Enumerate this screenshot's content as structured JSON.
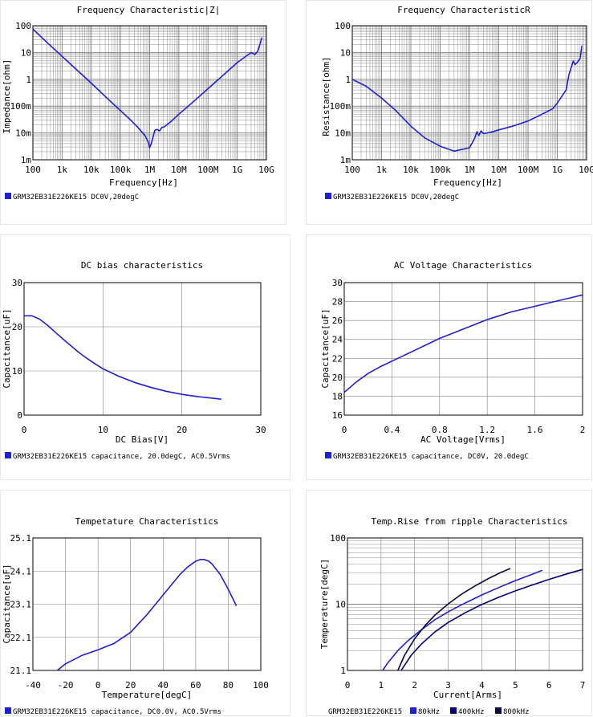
{
  "colors": {
    "blue": "#1f1fd4",
    "darkblue": "#00007a",
    "navy": "#0a0a40",
    "grid": "#808080"
  },
  "chart_data": [
    {
      "type": "line",
      "title": "Frequency  Characteristic|Z|",
      "xlabel": "Frequency[Hz]",
      "ylabel": "Impedance[ohm]",
      "xscale": "log",
      "yscale": "log",
      "xlim": [
        100,
        10000000000
      ],
      "ylim": [
        0.001,
        100
      ],
      "xtick_labels": [
        "100",
        "1k",
        "10k",
        "100k",
        "1M",
        "10M",
        "100M",
        "1G",
        "10G"
      ],
      "ytick_labels": [
        "1m",
        "10m",
        "100m",
        "1",
        "10",
        "100"
      ],
      "legend": [
        "GRM32EB31E226KE15 DC0V,20degC"
      ],
      "series": [
        {
          "name": "GRM32EB31E226KE15 DC0V,20degC",
          "color": "blue",
          "x": [
            100,
            300,
            1000,
            3000,
            10000,
            30000,
            100000,
            200000,
            400000,
            700000,
            900000,
            1000000,
            1150000,
            1500000,
            1800000,
            2200000,
            2600000,
            3200000,
            5000000,
            10000000,
            30000000,
            100000000,
            300000000,
            1000000000,
            3000000000,
            4000000000,
            5000000000,
            6000000000,
            7000000000
          ],
          "y": [
            75,
            24,
            7.2,
            2.4,
            0.72,
            0.23,
            0.068,
            0.034,
            0.016,
            0.0078,
            0.0045,
            0.0028,
            0.0042,
            0.0125,
            0.0135,
            0.012,
            0.016,
            0.017,
            0.025,
            0.05,
            0.14,
            0.45,
            1.3,
            4.2,
            10,
            8.5,
            11,
            20,
            36
          ]
        }
      ]
    },
    {
      "type": "line",
      "title": "Frequency  CharacteristicR",
      "xlabel": "Frequency[Hz]",
      "ylabel": "Resistance[ohm]",
      "xscale": "log",
      "yscale": "log",
      "xlim": [
        100,
        10000000000
      ],
      "ylim": [
        0.001,
        100
      ],
      "xtick_labels": [
        "100",
        "1k",
        "10k",
        "100k",
        "1M",
        "10M",
        "100M",
        "1G",
        "10G"
      ],
      "ytick_labels": [
        "1m",
        "10m",
        "100m",
        "1",
        "10",
        "100"
      ],
      "legend": [
        "GRM32EB31E226KE15 DC0V,20degC"
      ],
      "series": [
        {
          "name": "GRM32EB31E226KE15 DC0V,20degC",
          "color": "blue",
          "x": [
            100,
            300,
            1000,
            3000,
            10000,
            30000,
            100000,
            300000,
            1000000,
            1500000,
            1800000,
            2100000,
            2500000,
            3000000,
            4000000,
            6000000,
            10000000,
            30000000,
            100000000,
            300000000,
            700000000,
            1000000000,
            2000000000,
            2500000000,
            3000000000,
            3500000000,
            4000000000,
            5000000000,
            6000000000,
            7000000000
          ],
          "y": [
            1,
            0.55,
            0.2,
            0.07,
            0.018,
            0.0065,
            0.0032,
            0.0021,
            0.0028,
            0.0062,
            0.011,
            0.008,
            0.012,
            0.0095,
            0.01,
            0.011,
            0.013,
            0.018,
            0.028,
            0.05,
            0.08,
            0.13,
            0.4,
            1.5,
            2.8,
            4.8,
            3.5,
            4.5,
            6,
            18
          ]
        }
      ]
    },
    {
      "type": "line",
      "title": "DC bias characteristics",
      "xlabel": "DC Bias[V]",
      "ylabel": "Capacitance[uF]",
      "xlim": [
        0,
        30
      ],
      "ylim": [
        0,
        30
      ],
      "xtick_labels": [
        "0",
        "10",
        "20",
        "30"
      ],
      "ytick_labels": [
        "0",
        "10",
        "20",
        "30"
      ],
      "legend": [
        "GRM32EB31E226KE15 capacitance, 20.0degC, AC0.5Vrms"
      ],
      "series": [
        {
          "name": "GRM32EB31E226KE15 capacitance, 20.0degC, AC0.5Vrms",
          "color": "blue",
          "x": [
            0,
            1,
            2,
            3,
            4,
            5,
            6,
            7,
            8,
            9,
            10,
            12,
            14,
            16,
            18,
            20,
            22,
            24,
            25
          ],
          "y": [
            22.5,
            22.5,
            21.7,
            20.3,
            18.7,
            17.1,
            15.6,
            14.1,
            12.8,
            11.6,
            10.5,
            8.8,
            7.4,
            6.3,
            5.4,
            4.7,
            4.2,
            3.8,
            3.6
          ]
        }
      ]
    },
    {
      "type": "line",
      "title": "AC Voltage Characteristics",
      "xlabel": "AC Voltage[Vrms]",
      "ylabel": "Capacitance[uF]",
      "xlim": [
        0,
        2
      ],
      "ylim": [
        16,
        30
      ],
      "xtick_labels": [
        "0",
        "0.4",
        "0.8",
        "1.2",
        "1.6",
        "2"
      ],
      "ytick_labels": [
        "16",
        "18",
        "20",
        "22",
        "24",
        "26",
        "28",
        "30"
      ],
      "legend": [
        "GRM32EB31E226KE15 capacitance, DC0V, 20.0degC"
      ],
      "series": [
        {
          "name": "GRM32EB31E226KE15 capacitance, DC0V, 20.0degC",
          "color": "blue",
          "x": [
            0,
            0.1,
            0.2,
            0.3,
            0.4,
            0.5,
            0.6,
            0.7,
            0.8,
            0.9,
            1.0,
            1.1,
            1.2,
            1.3,
            1.4,
            1.5,
            1.6,
            1.7,
            1.8,
            1.9,
            2.0
          ],
          "y": [
            18.4,
            19.5,
            20.4,
            21.1,
            21.7,
            22.3,
            22.9,
            23.5,
            24.1,
            24.6,
            25.1,
            25.6,
            26.1,
            26.5,
            26.9,
            27.2,
            27.5,
            27.8,
            28.1,
            28.4,
            28.7
          ]
        }
      ]
    },
    {
      "type": "line",
      "title": "Tempetature  Characteristics",
      "xlabel": "Temperature[degC]",
      "ylabel": "Capacitance[uF]",
      "xlim": [
        -40,
        100
      ],
      "ylim": [
        21.1,
        25.1
      ],
      "xtick_labels": [
        "-40",
        "-20",
        "0",
        "20",
        "40",
        "60",
        "80",
        "100"
      ],
      "ytick_labels": [
        "21.1",
        "22.1",
        "23.1",
        "24.1",
        "25.1"
      ],
      "legend": [
        "GRM32EB31E226KE15 capacitance, DC0.0V, AC0.5Vrms"
      ],
      "series": [
        {
          "name": "GRM32EB31E226KE15 capacitance, DC0.0V, AC0.5Vrms",
          "color": "blue",
          "x": [
            -25,
            -20,
            -10,
            0,
            10,
            20,
            30,
            40,
            50,
            55,
            60,
            63,
            65,
            68,
            70,
            75,
            80,
            85
          ],
          "y": [
            21.1,
            21.3,
            21.55,
            21.72,
            21.92,
            22.25,
            22.78,
            23.38,
            23.98,
            24.22,
            24.4,
            24.45,
            24.45,
            24.4,
            24.32,
            24.0,
            23.55,
            23.05
          ]
        }
      ]
    },
    {
      "type": "line",
      "title": "Temp.Rise from ripple Characteristics",
      "xlabel": "Current[Arms]",
      "ylabel": "Temperature[degC]",
      "xscale": "linear",
      "yscale": "log",
      "xlim": [
        0,
        7
      ],
      "ylim": [
        1,
        100
      ],
      "xtick_labels": [
        "0",
        "1",
        "2",
        "3",
        "4",
        "5",
        "6",
        "7"
      ],
      "ytick_labels": [
        "1",
        "10",
        "100"
      ],
      "legend_prefix": "GRM32EB31E226KE15",
      "legend": [
        "80kHz",
        "400kHz",
        "800kHz"
      ],
      "series": [
        {
          "name": "80kHz",
          "color": "blue",
          "x": [
            1.05,
            1.2,
            1.5,
            1.8,
            2.2,
            2.6,
            3.0,
            3.5,
            4.0,
            4.5,
            5.0,
            5.5,
            5.8
          ],
          "y": [
            1,
            1.3,
            2.0,
            2.8,
            4.1,
            5.8,
            7.7,
            10.4,
            13.8,
            17.8,
            22.7,
            28.3,
            32.5
          ]
        },
        {
          "name": "400kHz",
          "color": "darkblue",
          "x": [
            1.6,
            1.7,
            1.9,
            2.2,
            2.6,
            3.0,
            3.5,
            4.0,
            4.5,
            5.0,
            5.5,
            6.0,
            6.5,
            7.0
          ],
          "y": [
            1,
            1.2,
            1.7,
            2.5,
            3.8,
            5.3,
            7.4,
            9.9,
            12.7,
            15.9,
            19.5,
            23.7,
            28.3,
            33.5
          ]
        },
        {
          "name": "800kHz",
          "color": "navy",
          "x": [
            1.5,
            1.7,
            2.0,
            2.3,
            2.6,
            3.0,
            3.4,
            3.8,
            4.2,
            4.6,
            4.85
          ],
          "y": [
            1,
            1.7,
            3.0,
            4.7,
            6.8,
            10.1,
            14.2,
            18.9,
            24.4,
            30.6,
            34.6
          ]
        }
      ]
    }
  ]
}
